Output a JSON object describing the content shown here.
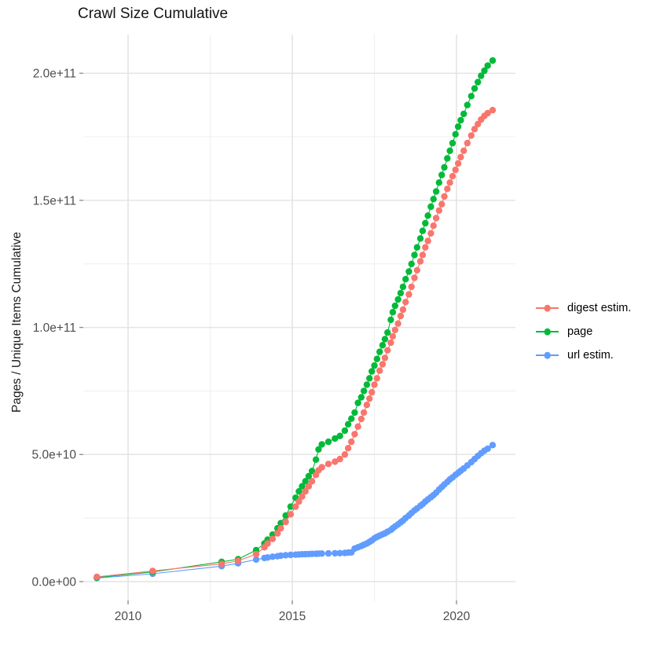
{
  "chart_data": {
    "type": "line",
    "title": "Crawl Size Cumulative",
    "xlabel": "",
    "ylabel": "Pages / Unique Items Cumulative",
    "legend_position": "right",
    "grid": "major+minor",
    "values_unit": "1e9 (billions of pages / unique items)",
    "x_range_years": [
      2008.6,
      2021.8
    ],
    "y_range_e9": [
      -8,
      215
    ],
    "colors": {
      "grid_major": "#e4e4e4",
      "grid_minor": "#efefef",
      "tick_mark": "#8a8a8a",
      "axis_text": "#4d4d4d",
      "title_text": "#141414"
    },
    "x_axis": {
      "ticks": [
        {
          "label": "2010",
          "year": 2010
        },
        {
          "label": "2015",
          "year": 2015
        },
        {
          "label": "2020",
          "year": 2020
        }
      ]
    },
    "y_axis": {
      "ticks": [
        {
          "label": "0.0e+00",
          "value_e9": 0
        },
        {
          "label": "5.0e+10",
          "value_e9": 50
        },
        {
          "label": "1.0e+11",
          "value_e9": 100
        },
        {
          "label": "1.5e+11",
          "value_e9": 150
        },
        {
          "label": "2.0e+11",
          "value_e9": 200
        }
      ]
    },
    "minor_gridlines": {
      "x_years": [
        2012.5,
        2017.5
      ],
      "y_values_e9": [
        25,
        75,
        125,
        175
      ]
    },
    "series": [
      {
        "id": "digest-estim",
        "name": "digest estim.",
        "color": "#F8766D",
        "points": [
          [
            2009.05,
            1.9
          ],
          [
            2010.75,
            4.2
          ],
          [
            2012.85,
            7.0
          ],
          [
            2013.35,
            8.2
          ],
          [
            2013.9,
            10.8
          ],
          [
            2014.15,
            13.5
          ],
          [
            2014.25,
            15
          ],
          [
            2014.4,
            16.8
          ],
          [
            2014.55,
            19
          ],
          [
            2014.65,
            21
          ],
          [
            2014.8,
            23.5
          ],
          [
            2014.95,
            26.5
          ],
          [
            2015.1,
            29.5
          ],
          [
            2015.2,
            31.5
          ],
          [
            2015.3,
            33.5
          ],
          [
            2015.4,
            35.5
          ],
          [
            2015.5,
            37.5
          ],
          [
            2015.6,
            39.5
          ],
          [
            2015.72,
            42
          ],
          [
            2015.8,
            43.8
          ],
          [
            2015.9,
            45
          ],
          [
            2016.1,
            46.3
          ],
          [
            2016.3,
            47.2
          ],
          [
            2016.45,
            48.2
          ],
          [
            2016.6,
            50
          ],
          [
            2016.7,
            52.5
          ],
          [
            2016.8,
            55
          ],
          [
            2016.9,
            58
          ],
          [
            2017.0,
            61
          ],
          [
            2017.1,
            64
          ],
          [
            2017.18,
            66.5
          ],
          [
            2017.27,
            69.5
          ],
          [
            2017.35,
            72
          ],
          [
            2017.42,
            74.5
          ],
          [
            2017.5,
            77.5
          ],
          [
            2017.58,
            80
          ],
          [
            2017.66,
            83
          ],
          [
            2017.75,
            85.5
          ],
          [
            2017.82,
            88
          ],
          [
            2017.9,
            91
          ],
          [
            2018.0,
            94
          ],
          [
            2018.06,
            96.5
          ],
          [
            2018.13,
            99
          ],
          [
            2018.22,
            101.5
          ],
          [
            2018.3,
            104.5
          ],
          [
            2018.37,
            107
          ],
          [
            2018.45,
            110
          ],
          [
            2018.55,
            113
          ],
          [
            2018.63,
            116
          ],
          [
            2018.72,
            119.5
          ],
          [
            2018.8,
            122.5
          ],
          [
            2018.9,
            126
          ],
          [
            2018.97,
            128.5
          ],
          [
            2019.05,
            131.5
          ],
          [
            2019.13,
            134
          ],
          [
            2019.22,
            137
          ],
          [
            2019.3,
            140
          ],
          [
            2019.38,
            143
          ],
          [
            2019.47,
            146
          ],
          [
            2019.55,
            148.5
          ],
          [
            2019.63,
            151.5
          ],
          [
            2019.72,
            154.5
          ],
          [
            2019.8,
            157
          ],
          [
            2019.88,
            159.5
          ],
          [
            2019.97,
            162
          ],
          [
            2020.05,
            164.5
          ],
          [
            2020.13,
            167
          ],
          [
            2020.22,
            169.5
          ],
          [
            2020.33,
            172.5
          ],
          [
            2020.45,
            175.5
          ],
          [
            2020.55,
            178
          ],
          [
            2020.65,
            180
          ],
          [
            2020.75,
            181.8
          ],
          [
            2020.85,
            183.2
          ],
          [
            2020.95,
            184.3
          ],
          [
            2021.1,
            185.5
          ]
        ]
      },
      {
        "id": "page",
        "name": "page",
        "color": "#00BA38",
        "points": [
          [
            2009.05,
            1.6
          ],
          [
            2010.75,
            3.8
          ],
          [
            2012.85,
            7.8
          ],
          [
            2013.35,
            8.8
          ],
          [
            2013.9,
            12.4
          ],
          [
            2014.15,
            15
          ],
          [
            2014.25,
            16.5
          ],
          [
            2014.4,
            18.5
          ],
          [
            2014.55,
            21
          ],
          [
            2014.65,
            23
          ],
          [
            2014.8,
            26
          ],
          [
            2014.95,
            29.5
          ],
          [
            2015.1,
            33
          ],
          [
            2015.2,
            35.5
          ],
          [
            2015.3,
            37.5
          ],
          [
            2015.4,
            39.5
          ],
          [
            2015.5,
            41.5
          ],
          [
            2015.6,
            43.5
          ],
          [
            2015.72,
            48
          ],
          [
            2015.8,
            52
          ],
          [
            2015.9,
            54
          ],
          [
            2016.1,
            55
          ],
          [
            2016.3,
            56.3
          ],
          [
            2016.45,
            57.3
          ],
          [
            2016.6,
            59.4
          ],
          [
            2016.7,
            61.9
          ],
          [
            2016.8,
            64.1
          ],
          [
            2016.9,
            66.5
          ],
          [
            2017.0,
            70.3
          ],
          [
            2017.1,
            72.5
          ],
          [
            2017.18,
            75
          ],
          [
            2017.27,
            77.5
          ],
          [
            2017.35,
            80
          ],
          [
            2017.42,
            82.7
          ],
          [
            2017.5,
            85
          ],
          [
            2017.58,
            87.6
          ],
          [
            2017.66,
            90.4
          ],
          [
            2017.75,
            93
          ],
          [
            2017.82,
            95.4
          ],
          [
            2017.9,
            98
          ],
          [
            2018.0,
            103
          ],
          [
            2018.06,
            106
          ],
          [
            2018.13,
            108.5
          ],
          [
            2018.22,
            111
          ],
          [
            2018.3,
            113.5
          ],
          [
            2018.37,
            116
          ],
          [
            2018.45,
            119
          ],
          [
            2018.55,
            122
          ],
          [
            2018.63,
            125
          ],
          [
            2018.72,
            128.5
          ],
          [
            2018.8,
            131.5
          ],
          [
            2018.9,
            135
          ],
          [
            2018.97,
            138
          ],
          [
            2019.05,
            141
          ],
          [
            2019.13,
            144
          ],
          [
            2019.22,
            147.5
          ],
          [
            2019.3,
            150.5
          ],
          [
            2019.38,
            153.5
          ],
          [
            2019.47,
            157
          ],
          [
            2019.55,
            160
          ],
          [
            2019.63,
            163
          ],
          [
            2019.72,
            166.5
          ],
          [
            2019.8,
            169.5
          ],
          [
            2019.88,
            172.5
          ],
          [
            2019.97,
            176
          ],
          [
            2020.05,
            179
          ],
          [
            2020.13,
            181.5
          ],
          [
            2020.22,
            184
          ],
          [
            2020.33,
            187.5
          ],
          [
            2020.45,
            191
          ],
          [
            2020.55,
            194
          ],
          [
            2020.65,
            196.5
          ],
          [
            2020.75,
            199
          ],
          [
            2020.85,
            201
          ],
          [
            2020.95,
            203
          ],
          [
            2021.1,
            205
          ]
        ]
      },
      {
        "id": "url-estim",
        "name": "url estim.",
        "color": "#619CFF",
        "points": [
          [
            2009.05,
            1.4
          ],
          [
            2010.75,
            3.1
          ],
          [
            2012.85,
            6.1
          ],
          [
            2013.35,
            7.2
          ],
          [
            2013.9,
            8.7
          ],
          [
            2014.15,
            9.3
          ],
          [
            2014.25,
            9.5
          ],
          [
            2014.4,
            9.8
          ],
          [
            2014.55,
            10.0
          ],
          [
            2014.65,
            10.2
          ],
          [
            2014.8,
            10.4
          ],
          [
            2014.95,
            10.5
          ],
          [
            2015.1,
            10.6
          ],
          [
            2015.2,
            10.7
          ],
          [
            2015.3,
            10.75
          ],
          [
            2015.4,
            10.8
          ],
          [
            2015.5,
            10.85
          ],
          [
            2015.6,
            10.9
          ],
          [
            2015.72,
            10.95
          ],
          [
            2015.8,
            11.0
          ],
          [
            2015.9,
            11.05
          ],
          [
            2016.1,
            11.1
          ],
          [
            2016.3,
            11.15
          ],
          [
            2016.45,
            11.2
          ],
          [
            2016.6,
            11.3
          ],
          [
            2016.7,
            11.4
          ],
          [
            2016.8,
            11.5
          ],
          [
            2016.9,
            13.0
          ],
          [
            2017.0,
            13.5
          ],
          [
            2017.1,
            14
          ],
          [
            2017.18,
            14.5
          ],
          [
            2017.27,
            15
          ],
          [
            2017.35,
            15.6
          ],
          [
            2017.42,
            16.2
          ],
          [
            2017.5,
            17
          ],
          [
            2017.58,
            17.6
          ],
          [
            2017.66,
            18.1
          ],
          [
            2017.75,
            18.6
          ],
          [
            2017.82,
            19
          ],
          [
            2017.9,
            19.6
          ],
          [
            2018.0,
            20.3
          ],
          [
            2018.06,
            21
          ],
          [
            2018.13,
            21.7
          ],
          [
            2018.22,
            22.5
          ],
          [
            2018.3,
            23.3
          ],
          [
            2018.37,
            24
          ],
          [
            2018.45,
            25
          ],
          [
            2018.55,
            26
          ],
          [
            2018.63,
            27
          ],
          [
            2018.72,
            28
          ],
          [
            2018.8,
            28.8
          ],
          [
            2018.9,
            29.8
          ],
          [
            2018.97,
            30.5
          ],
          [
            2019.05,
            31.5
          ],
          [
            2019.13,
            32.3
          ],
          [
            2019.22,
            33.2
          ],
          [
            2019.3,
            34
          ],
          [
            2019.38,
            35
          ],
          [
            2019.47,
            36.2
          ],
          [
            2019.55,
            37.2
          ],
          [
            2019.63,
            38.2
          ],
          [
            2019.72,
            39.2
          ],
          [
            2019.8,
            40.2
          ],
          [
            2019.88,
            41
          ],
          [
            2019.97,
            42
          ],
          [
            2020.05,
            42.8
          ],
          [
            2020.13,
            43.6
          ],
          [
            2020.22,
            44.5
          ],
          [
            2020.33,
            45.7
          ],
          [
            2020.45,
            47
          ],
          [
            2020.55,
            48.2
          ],
          [
            2020.65,
            49.4
          ],
          [
            2020.75,
            50.5
          ],
          [
            2020.85,
            51.5
          ],
          [
            2020.95,
            52.3
          ],
          [
            2021.1,
            53.7
          ]
        ]
      }
    ]
  }
}
